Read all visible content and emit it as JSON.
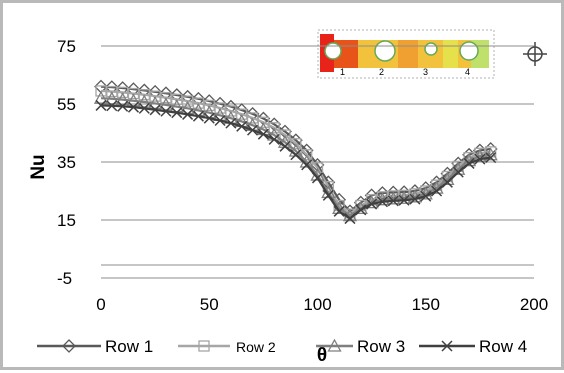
{
  "chart_data": {
    "type": "line",
    "title": "",
    "xlabel": "θ",
    "ylabel": "Nu",
    "xlim": [
      0,
      200
    ],
    "ylim": [
      -5,
      75
    ],
    "x_ticks": [
      0,
      50,
      100,
      150,
      200
    ],
    "y_ticks": [
      -5,
      15,
      35,
      55,
      75
    ],
    "y_tick_labels": [
      "-5",
      "15",
      "35",
      "55",
      "75"
    ],
    "grid": "horizontal",
    "legend_position": "bottom",
    "series": [
      {
        "name": "Row 1",
        "color": "#595959",
        "marker": "diamond",
        "x": [
          0,
          5,
          10,
          15,
          20,
          25,
          30,
          35,
          40,
          45,
          50,
          55,
          60,
          65,
          70,
          75,
          80,
          85,
          90,
          95,
          100,
          105,
          110,
          115,
          120,
          125,
          130,
          135,
          140,
          145,
          150,
          155,
          160,
          165,
          170,
          175,
          180
        ],
        "y": [
          61,
          60.8,
          60.5,
          60.1,
          59.7,
          59.2,
          58.7,
          58.1,
          57.5,
          56.8,
          56,
          55.1,
          54.1,
          52.9,
          51.6,
          50,
          48,
          45.5,
          42.5,
          39,
          34,
          28,
          22,
          18,
          21,
          23.5,
          24.3,
          24.5,
          24.6,
          25,
          26,
          28,
          31,
          34.5,
          37.5,
          39,
          39.5
        ]
      },
      {
        "name": "Row 2",
        "color": "#a6a6a6",
        "marker": "square",
        "x": [
          0,
          5,
          10,
          15,
          20,
          25,
          30,
          35,
          40,
          45,
          50,
          55,
          60,
          65,
          70,
          75,
          80,
          85,
          90,
          95,
          100,
          105,
          110,
          115,
          120,
          125,
          130,
          135,
          140,
          145,
          150,
          155,
          160,
          165,
          170,
          175,
          180
        ],
        "y": [
          59.5,
          59.3,
          59,
          58.6,
          58.2,
          57.7,
          57.2,
          56.6,
          56,
          55.3,
          54.5,
          53.6,
          52.6,
          51.5,
          50.2,
          48.7,
          46.8,
          44.3,
          41.3,
          37.5,
          33,
          26.5,
          20,
          17,
          20,
          22,
          23,
          23.3,
          23.5,
          24,
          25,
          27,
          30,
          33.5,
          36.5,
          38,
          38.5
        ]
      },
      {
        "name": "Row 3",
        "color": "#7f7f7f",
        "marker": "triangle",
        "x": [
          0,
          5,
          10,
          15,
          20,
          25,
          30,
          35,
          40,
          45,
          50,
          55,
          60,
          65,
          70,
          75,
          80,
          85,
          90,
          95,
          100,
          105,
          110,
          115,
          120,
          125,
          130,
          135,
          140,
          145,
          150,
          155,
          160,
          165,
          170,
          175,
          180
        ],
        "y": [
          57,
          56.8,
          56.5,
          56.1,
          55.7,
          55.2,
          54.7,
          54.1,
          53.5,
          52.8,
          52,
          51.1,
          50.1,
          49,
          47.7,
          46.2,
          44.3,
          41.8,
          38.8,
          35,
          30.5,
          24.5,
          19,
          16.5,
          19,
          21,
          22,
          22.3,
          22.5,
          23,
          24,
          26,
          29,
          32.5,
          35.5,
          37,
          37.5
        ]
      },
      {
        "name": "Row 4",
        "color": "#404040",
        "marker": "x",
        "x": [
          0,
          5,
          10,
          15,
          20,
          25,
          30,
          35,
          40,
          45,
          50,
          55,
          60,
          65,
          70,
          75,
          80,
          85,
          90,
          95,
          100,
          105,
          110,
          115,
          120,
          125,
          130,
          135,
          140,
          145,
          150,
          155,
          160,
          165,
          170,
          175,
          180
        ],
        "y": [
          54.5,
          54.4,
          54.2,
          53.9,
          53.5,
          53,
          52.5,
          52,
          51.4,
          50.8,
          50.1,
          49.3,
          48.4,
          47.3,
          46,
          44.6,
          42.8,
          40.4,
          37.5,
          34,
          29.5,
          23.5,
          18,
          15.5,
          18.5,
          20.5,
          21.3,
          21.6,
          21.8,
          22.2,
          23.2,
          25,
          28,
          31.5,
          34.5,
          36,
          36.5
        ]
      }
    ]
  }
}
